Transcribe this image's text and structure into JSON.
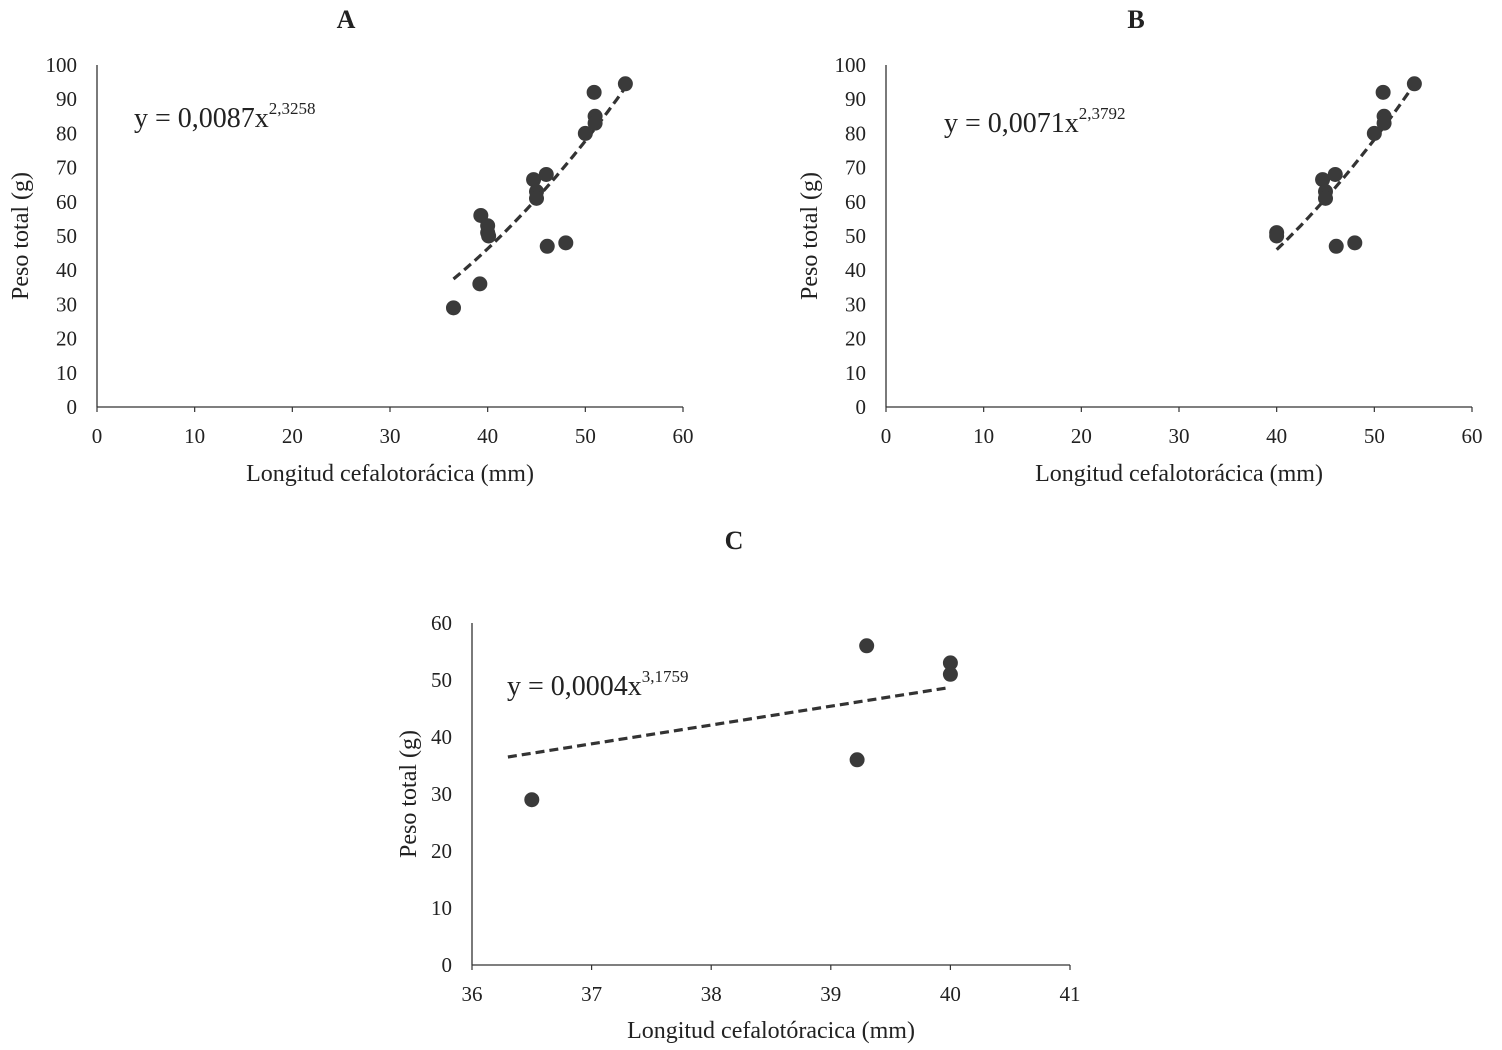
{
  "colors": {
    "marker": "#3a3a3a",
    "axis": "#333333",
    "trend": "#333333",
    "text": "#222222"
  },
  "chart_data": [
    {
      "type": "scatter",
      "panel": "A",
      "xlabel": "Longitud cefalotorácica (mm)",
      "ylabel": "Peso total (g)",
      "xlim": [
        0,
        60
      ],
      "ylim": [
        0,
        100
      ],
      "xticks": [
        "0",
        "10",
        "20",
        "30",
        "40",
        "50",
        "60"
      ],
      "yticks": [
        "0",
        "10",
        "20",
        "30",
        "40",
        "50",
        "60",
        "70",
        "80",
        "90",
        "100"
      ],
      "equation": {
        "base": "y = 0,0087x",
        "exponent": "2,3258"
      },
      "trendline": {
        "type": "power",
        "a": 0.0087,
        "b": 2.3258,
        "x_range": [
          36.5,
          54.1
        ]
      },
      "grid": false,
      "points": [
        {
          "x": 36.5,
          "y": 29
        },
        {
          "x": 39.2,
          "y": 36
        },
        {
          "x": 39.3,
          "y": 56
        },
        {
          "x": 40.0,
          "y": 53
        },
        {
          "x": 40.0,
          "y": 51
        },
        {
          "x": 40.1,
          "y": 50
        },
        {
          "x": 44.7,
          "y": 66.5
        },
        {
          "x": 45.0,
          "y": 63
        },
        {
          "x": 45.0,
          "y": 61
        },
        {
          "x": 46.0,
          "y": 68
        },
        {
          "x": 46.1,
          "y": 47
        },
        {
          "x": 48.0,
          "y": 48
        },
        {
          "x": 50.0,
          "y": 80
        },
        {
          "x": 50.9,
          "y": 92
        },
        {
          "x": 51.0,
          "y": 85
        },
        {
          "x": 51.0,
          "y": 83
        },
        {
          "x": 54.1,
          "y": 94.5
        }
      ]
    },
    {
      "type": "scatter",
      "panel": "B",
      "xlabel": "Longitud cefalotorácica (mm)",
      "ylabel": "Peso total (g)",
      "xlim": [
        0,
        60
      ],
      "ylim": [
        0,
        100
      ],
      "xticks": [
        "0",
        "10",
        "20",
        "30",
        "40",
        "50",
        "60"
      ],
      "yticks": [
        "0",
        "10",
        "20",
        "30",
        "40",
        "50",
        "60",
        "70",
        "80",
        "90",
        "100"
      ],
      "equation": {
        "base": "y = 0,0071x",
        "exponent": "2,3792"
      },
      "trendline": {
        "type": "power",
        "a": 0.0071,
        "b": 2.3792,
        "x_range": [
          40.0,
          54.1
        ]
      },
      "grid": false,
      "points": [
        {
          "x": 40.0,
          "y": 51
        },
        {
          "x": 40.0,
          "y": 50
        },
        {
          "x": 44.7,
          "y": 66.5
        },
        {
          "x": 45.0,
          "y": 63
        },
        {
          "x": 45.0,
          "y": 61
        },
        {
          "x": 46.0,
          "y": 68
        },
        {
          "x": 46.1,
          "y": 47
        },
        {
          "x": 48.0,
          "y": 48
        },
        {
          "x": 50.0,
          "y": 80
        },
        {
          "x": 50.9,
          "y": 92
        },
        {
          "x": 51.0,
          "y": 85
        },
        {
          "x": 51.0,
          "y": 83
        },
        {
          "x": 54.1,
          "y": 94.5
        }
      ]
    },
    {
      "type": "scatter",
      "panel": "C",
      "xlabel": "Longitud cefalotóracica (mm)",
      "ylabel": "Peso total (g)",
      "xlim": [
        36,
        41
      ],
      "ylim": [
        0,
        60
      ],
      "xticks": [
        "36",
        "37",
        "38",
        "39",
        "40",
        "41"
      ],
      "yticks": [
        "0",
        "10",
        "20",
        "30",
        "40",
        "50",
        "60"
      ],
      "equation": {
        "base": "y = 0,0004x",
        "exponent": "3,1759"
      },
      "trendline": {
        "type": "power",
        "a": 0.0004,
        "b": 3.1759,
        "x_range": [
          36.3,
          40.0
        ],
        "line_y_range": [
          36.5,
          48.7
        ]
      },
      "grid": false,
      "points": [
        {
          "x": 36.5,
          "y": 29
        },
        {
          "x": 39.22,
          "y": 36
        },
        {
          "x": 39.3,
          "y": 56
        },
        {
          "x": 40.0,
          "y": 53
        },
        {
          "x": 40.0,
          "y": 51
        }
      ]
    }
  ]
}
